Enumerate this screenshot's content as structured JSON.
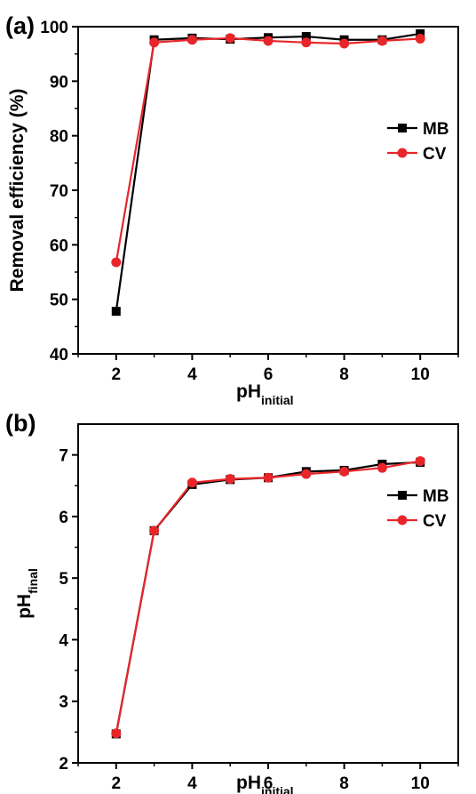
{
  "chart_data": [
    {
      "panel_label": "(a)",
      "type": "line",
      "xlabel": "pH",
      "xlabel_sub": "initial",
      "ylabel": "Removal efficiency (%)",
      "xlim": [
        1,
        11
      ],
      "ylim": [
        40,
        100
      ],
      "xticks": [
        "2",
        "4",
        "6",
        "8",
        "10"
      ],
      "yticks": [
        "40",
        "50",
        "60",
        "70",
        "80",
        "90",
        "100"
      ],
      "legend_position": "top-right",
      "series": [
        {
          "name": "MB",
          "color": "#000000",
          "marker": "square",
          "x": [
            2,
            3,
            4,
            5,
            6,
            7,
            8,
            9,
            10
          ],
          "y": [
            47.8,
            97.6,
            97.9,
            97.7,
            98.0,
            98.2,
            97.6,
            97.6,
            98.7
          ]
        },
        {
          "name": "CV",
          "color": "#e8262a",
          "marker": "circle",
          "x": [
            2,
            3,
            4,
            5,
            6,
            7,
            8,
            9,
            10
          ],
          "y": [
            56.8,
            97.1,
            97.6,
            97.9,
            97.4,
            97.1,
            96.9,
            97.4,
            97.8
          ]
        }
      ]
    },
    {
      "panel_label": "(b)",
      "type": "line",
      "xlabel": "pH",
      "xlabel_sub": "initial",
      "ylabel": "pH",
      "ylabel_sub": "final",
      "xlim": [
        1,
        11
      ],
      "ylim": [
        2,
        7.5
      ],
      "xticks": [
        "2",
        "4",
        "6",
        "8",
        "10"
      ],
      "yticks": [
        "2",
        "3",
        "4",
        "5",
        "6",
        "7"
      ],
      "legend_position": "right",
      "series": [
        {
          "name": "MB",
          "color": "#000000",
          "marker": "square",
          "x": [
            2,
            3,
            4,
            5,
            6,
            7,
            8,
            9,
            10
          ],
          "y": [
            2.47,
            5.77,
            6.52,
            6.6,
            6.63,
            6.73,
            6.75,
            6.85,
            6.88
          ]
        },
        {
          "name": "CV",
          "color": "#e8262a",
          "marker": "circle",
          "x": [
            2,
            3,
            4,
            5,
            6,
            7,
            8,
            9,
            10
          ],
          "y": [
            2.48,
            5.77,
            6.55,
            6.61,
            6.63,
            6.69,
            6.73,
            6.79,
            6.9
          ]
        }
      ]
    }
  ]
}
